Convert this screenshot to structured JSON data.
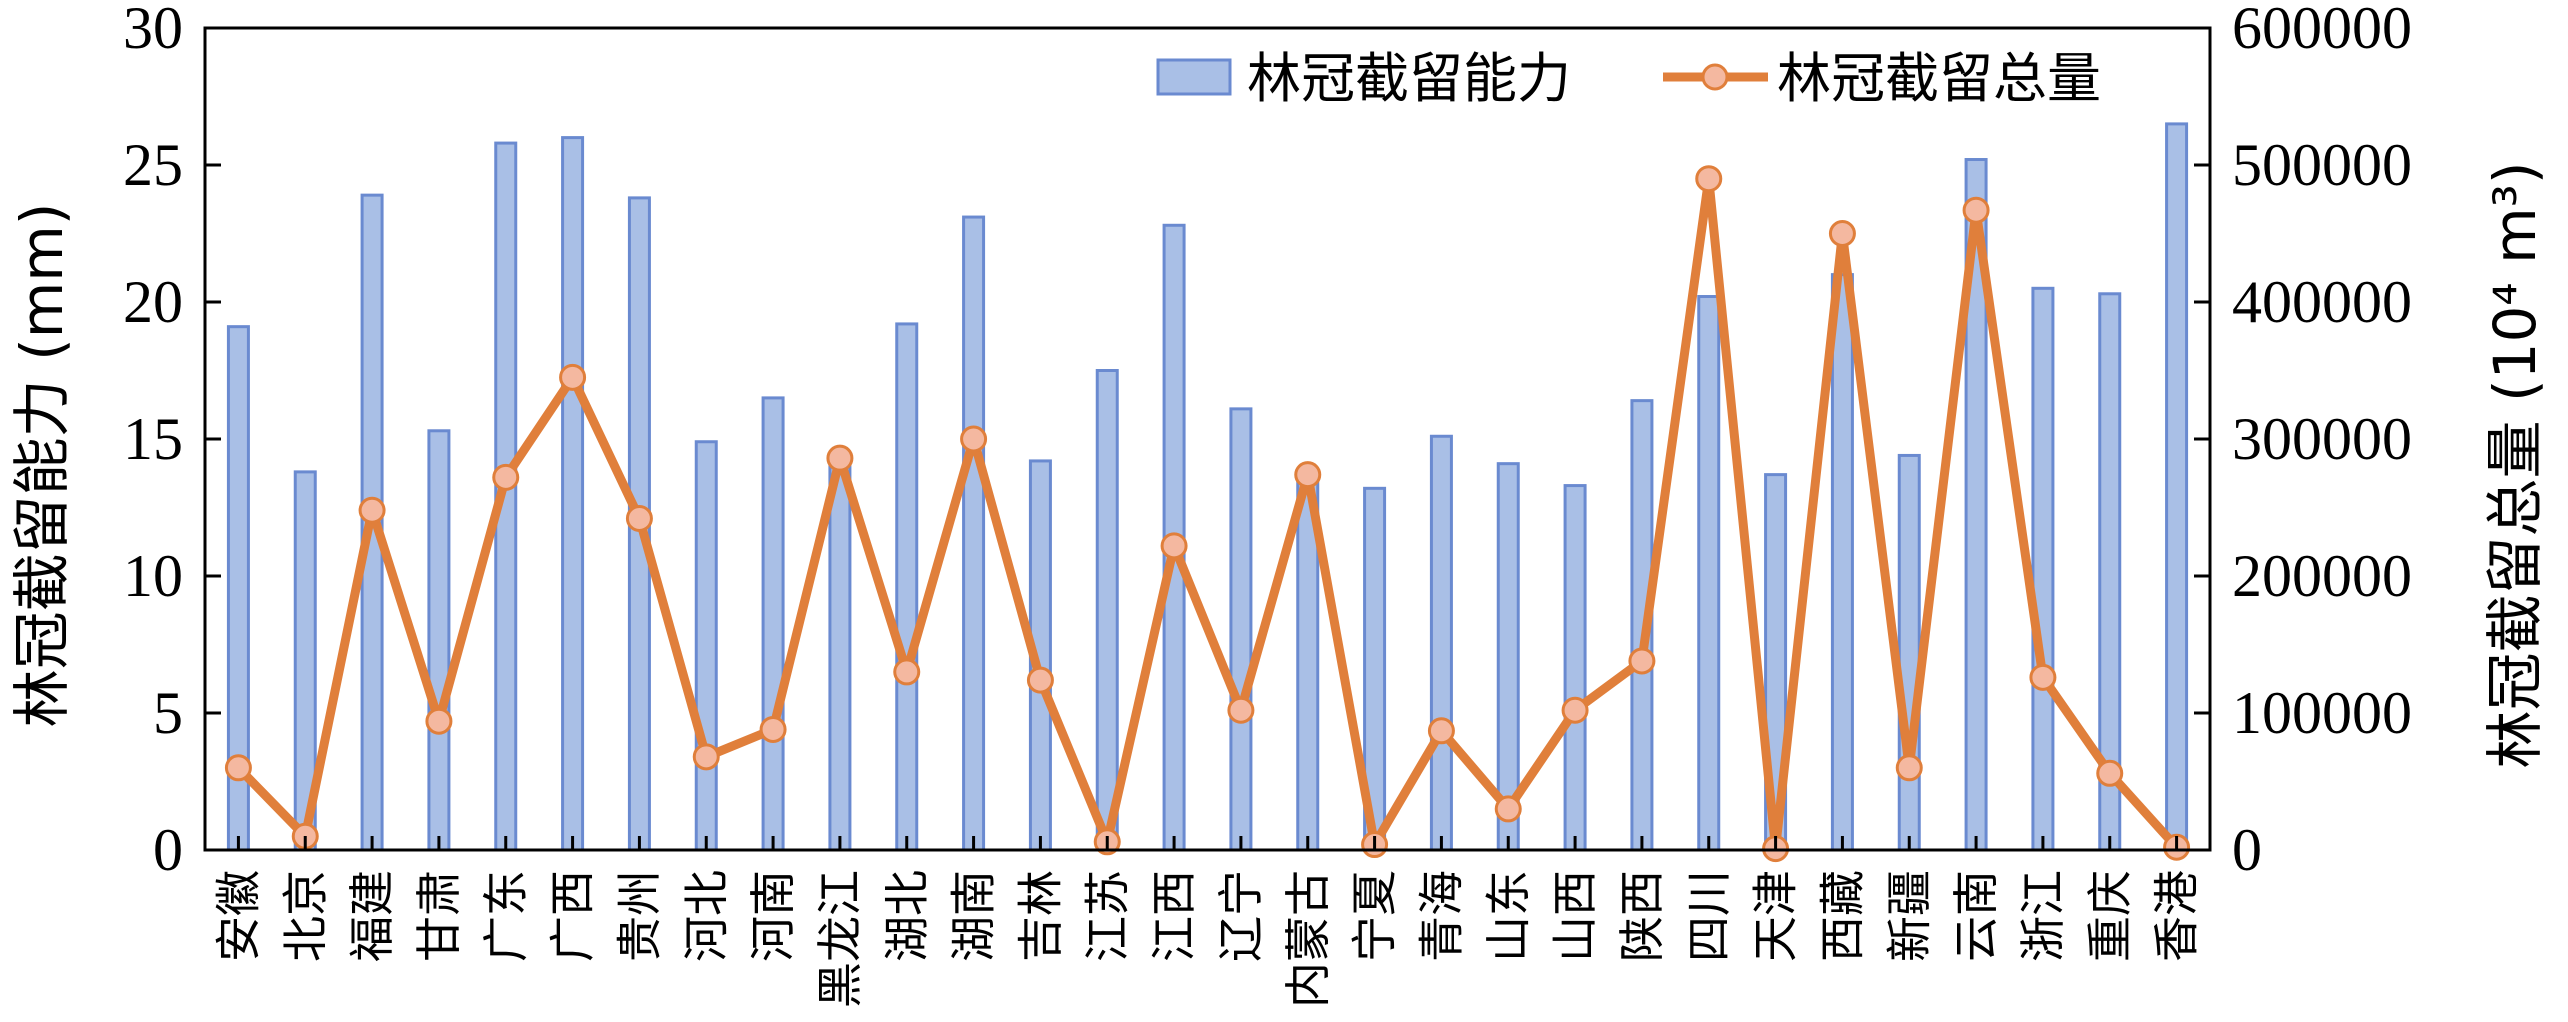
{
  "chart_data": {
    "type": "bar",
    "categories": [
      "安徽",
      "北京",
      "福建",
      "甘肃",
      "广东",
      "广西",
      "贵州",
      "河北",
      "河南",
      "黑龙江",
      "湖北",
      "湖南",
      "吉林",
      "江苏",
      "江西",
      "辽宁",
      "内蒙古",
      "宁夏",
      "青海",
      "山东",
      "山西",
      "陕西",
      "四川",
      "天津",
      "西藏",
      "新疆",
      "云南",
      "浙江",
      "重庆",
      "香港"
    ],
    "series": [
      {
        "name": "林冠截留能力",
        "kind": "bar",
        "axis": "left",
        "values": [
          19.1,
          13.8,
          23.9,
          15.3,
          25.8,
          26.0,
          23.8,
          14.9,
          16.5,
          14.0,
          19.2,
          23.1,
          14.2,
          17.5,
          22.8,
          16.1,
          13.5,
          13.2,
          15.1,
          14.1,
          13.3,
          16.4,
          20.2,
          13.7,
          21.0,
          14.4,
          25.2,
          20.5,
          20.3,
          26.5
        ],
        "color": "#a9bfe6",
        "edge_color": "#6a8ad0"
      },
      {
        "name": "林冠截留总量",
        "kind": "line",
        "axis": "right",
        "values": [
          60000,
          10000,
          248000,
          94000,
          272000,
          345000,
          242000,
          68000,
          88000,
          286000,
          130000,
          300000,
          124000,
          6000,
          222000,
          102000,
          274000,
          4000,
          87000,
          30000,
          102000,
          138000,
          490000,
          1000,
          450000,
          60000,
          467000,
          126000,
          56000,
          2000
        ],
        "color": "#e07f3b",
        "marker_fill": "#f4b8a0",
        "marker_edge": "#e07f3b"
      }
    ],
    "ylabel": "林冠截留能力 (mm)",
    "ylabel_right": "林冠截留总量 (10⁴ m³)",
    "ylim": [
      0,
      30
    ],
    "ylim_right": [
      0,
      600000
    ],
    "yticks": [
      "0",
      "5",
      "10",
      "15",
      "20",
      "25",
      "30"
    ],
    "yticks_right": [
      "0",
      "100000",
      "200000",
      "300000",
      "400000",
      "500000",
      "600000"
    ],
    "legend_position": "top-right",
    "grid": false
  }
}
